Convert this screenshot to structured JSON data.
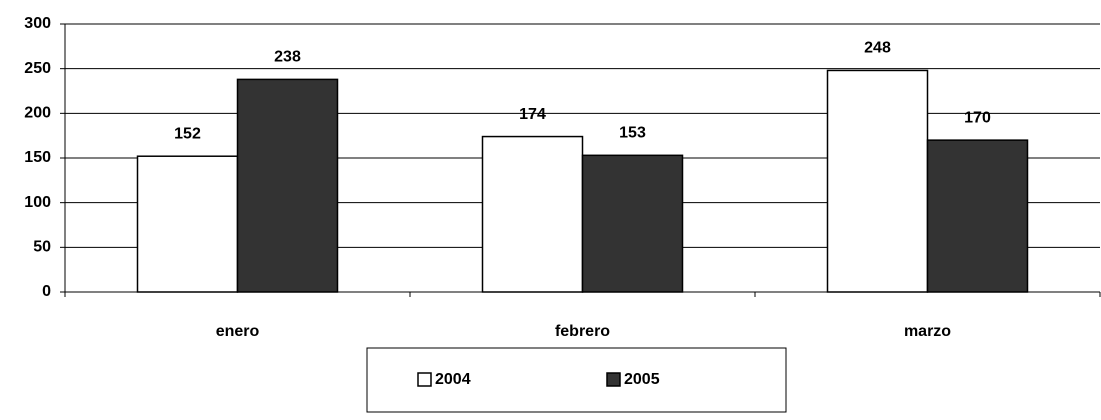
{
  "chart_data": {
    "type": "bar",
    "categories": [
      "enero",
      "febrero",
      "marzo"
    ],
    "series": [
      {
        "name": "2004",
        "color": "#ffffff",
        "values": [
          152,
          174,
          248
        ]
      },
      {
        "name": "2005",
        "color": "#333333",
        "values": [
          238,
          153,
          170
        ]
      }
    ],
    "ylim": [
      0,
      300
    ],
    "yticks": [
      0,
      50,
      100,
      150,
      200,
      250,
      300
    ],
    "grid": true
  }
}
